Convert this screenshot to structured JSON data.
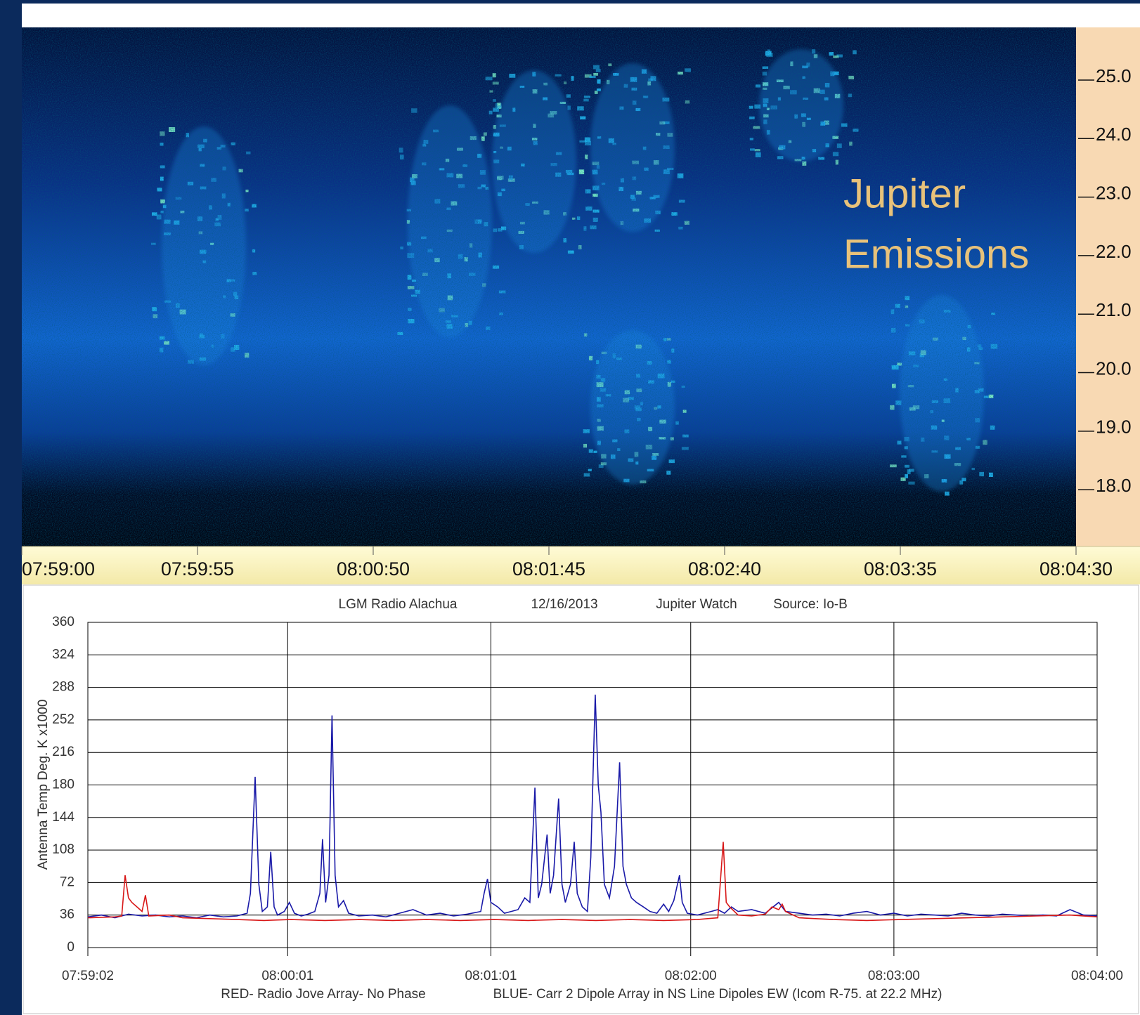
{
  "chart_data": [
    {
      "type": "spectrogram",
      "annotation": [
        "Jupiter",
        "Emissions"
      ],
      "ylim": [
        17.03,
        25.9
      ],
      "yticks": [
        {
          "value": 25,
          "label": "25.0"
        },
        {
          "value": 24,
          "label": "24.0"
        },
        {
          "value": 23,
          "label": "23.0"
        },
        {
          "value": 22,
          "label": "22.0"
        },
        {
          "value": 21,
          "label": "21.0"
        },
        {
          "value": 20,
          "label": "20.0"
        },
        {
          "value": 19,
          "label": "19.0"
        },
        {
          "value": 18,
          "label": "18.0"
        }
      ],
      "xticks": [
        "07:59:00",
        "07:59:55",
        "08:00:50",
        "08:01:45",
        "08:02:40",
        "08:03:35",
        "08:04:30"
      ]
    },
    {
      "type": "line",
      "header": [
        "LGM Radio Alachua",
        "12/16/2013",
        "Jupiter Watch",
        "Source: Io-B"
      ],
      "ylabel": "Antenna Temp Deg. K x1000",
      "xlim": [
        0,
        298
      ],
      "xticks": [
        {
          "value": 0,
          "label": "07:59:02"
        },
        {
          "value": 59,
          "label": "08:00:01"
        },
        {
          "value": 119,
          "label": "08:01:01"
        },
        {
          "value": 178,
          "label": "08:02:00"
        },
        {
          "value": 238,
          "label": "08:03:00"
        },
        {
          "value": 298,
          "label": "08:04:00"
        }
      ],
      "ylim": [
        0,
        360
      ],
      "yticks": [
        0,
        36,
        72,
        108,
        144,
        180,
        216,
        252,
        288,
        324,
        360
      ],
      "grid": true,
      "series": [
        {
          "name": "RED- Radio Jove Array- No Phase",
          "color": "#d81818",
          "x": [
            0,
            8,
            10,
            11,
            12,
            13,
            14.5,
            16,
            17,
            18,
            24,
            28,
            36,
            44,
            52,
            60,
            70,
            80,
            90,
            100,
            110,
            120,
            130,
            140,
            150,
            160,
            170,
            180,
            186,
            187.6,
            188.5,
            189.5,
            192,
            196,
            200,
            202,
            204,
            205,
            206,
            210,
            220,
            230,
            240,
            250,
            260,
            270,
            280,
            290,
            298
          ],
          "values": [
            33,
            34,
            35,
            80,
            55,
            50,
            45,
            40,
            58,
            35,
            36,
            33,
            32,
            31,
            30,
            31,
            30,
            31,
            30,
            31,
            30,
            31,
            30,
            31,
            30,
            31,
            30,
            31,
            33,
            117,
            50,
            45,
            36,
            35,
            37,
            45,
            42,
            48,
            40,
            33,
            31,
            30,
            31,
            32,
            33,
            34,
            35,
            36,
            34
          ]
        },
        {
          "name": "BLUE-  Carr 2 Dipole Array in NS Line  Dipoles EW (Icom R-75. at 22.2 MHz)",
          "color": "#1a1aa8",
          "x": [
            0,
            4,
            8,
            12,
            16,
            20,
            24,
            28,
            32,
            36,
            40,
            44,
            47,
            48,
            49.4,
            50.5,
            51.5,
            53,
            54,
            55,
            56,
            58,
            59.5,
            61,
            63,
            65,
            67,
            68.5,
            69.3,
            70.2,
            71.2,
            72.1,
            73,
            74,
            75.5,
            77,
            80,
            84,
            88,
            92,
            96,
            100,
            104,
            108,
            112,
            116,
            117,
            118,
            119,
            121,
            123,
            125,
            127,
            129,
            130.5,
            132,
            133,
            134,
            135.6,
            136.5,
            137.5,
            139,
            140,
            141,
            142.5,
            143.6,
            144.5,
            146,
            147.5,
            148.5,
            149.8,
            150.7,
            151.5,
            152.5,
            154,
            155.5,
            157,
            158,
            159,
            160.5,
            162,
            164,
            166,
            168,
            170,
            171.5,
            173,
            174.7,
            175.5,
            177,
            180,
            184,
            186,
            188,
            190,
            192,
            196,
            200,
            204,
            206,
            210,
            214,
            218,
            222,
            226,
            230,
            234,
            238,
            242,
            246,
            250,
            254,
            258,
            262,
            266,
            270,
            274,
            278,
            282,
            286,
            290,
            294,
            298
          ],
          "values": [
            34,
            36,
            33,
            37,
            35,
            36,
            34,
            35,
            33,
            36,
            34,
            35,
            38,
            60,
            189,
            70,
            40,
            45,
            106,
            45,
            36,
            40,
            50,
            38,
            35,
            37,
            40,
            60,
            120,
            50,
            80,
            257,
            80,
            45,
            52,
            38,
            35,
            36,
            34,
            38,
            42,
            36,
            38,
            35,
            37,
            40,
            60,
            76,
            50,
            45,
            38,
            40,
            42,
            55,
            50,
            177,
            55,
            70,
            125,
            60,
            80,
            165,
            70,
            50,
            70,
            117,
            60,
            45,
            40,
            100,
            280,
            180,
            150,
            70,
            55,
            90,
            205,
            90,
            70,
            55,
            50,
            45,
            40,
            38,
            48,
            40,
            52,
            80,
            50,
            38,
            36,
            40,
            42,
            38,
            45,
            40,
            42,
            38,
            50,
            40,
            38,
            36,
            37,
            35,
            38,
            40,
            36,
            38,
            35,
            37,
            36,
            35,
            38,
            36,
            35,
            37,
            36,
            35,
            36,
            35,
            42,
            36,
            35
          ]
        }
      ]
    }
  ]
}
